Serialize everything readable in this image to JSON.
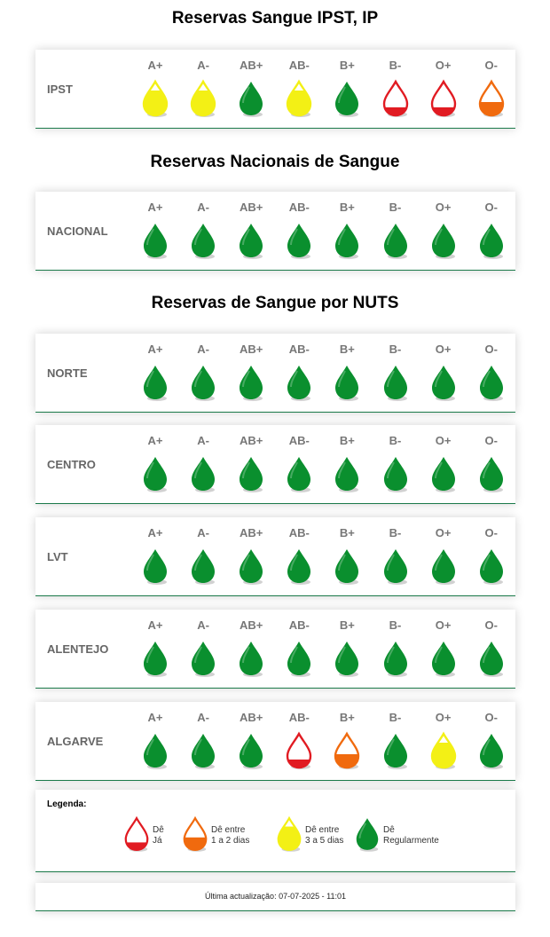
{
  "colors": {
    "green": "#0a8f2e",
    "yellow": "#f3f015",
    "orange": "#f06a0e",
    "red": "#e11b22"
  },
  "blood_types": [
    "A+",
    "A-",
    "AB+",
    "AB-",
    "B+",
    "B-",
    "O+",
    "O-"
  ],
  "sections": {
    "ipst_title": "Reservas Sangue IPST, IP",
    "national_title": "Reservas Nacionais de Sangue",
    "nuts_title": "Reservas de Sangue por NUTS"
  },
  "regions": [
    {
      "name": "IPST",
      "levels": [
        "yellow",
        "yellow",
        "green",
        "yellow",
        "green",
        "red",
        "red",
        "orange"
      ]
    },
    {
      "name": "NACIONAL",
      "levels": [
        "green",
        "green",
        "green",
        "green",
        "green",
        "green",
        "green",
        "green"
      ]
    },
    {
      "name": "NORTE",
      "levels": [
        "green",
        "green",
        "green",
        "green",
        "green",
        "green",
        "green",
        "green"
      ]
    },
    {
      "name": "CENTRO",
      "levels": [
        "green",
        "green",
        "green",
        "green",
        "green",
        "green",
        "green",
        "green"
      ]
    },
    {
      "name": "LVT",
      "levels": [
        "green",
        "green",
        "green",
        "green",
        "green",
        "green",
        "green",
        "green"
      ]
    },
    {
      "name": "ALENTEJO",
      "levels": [
        "green",
        "green",
        "green",
        "green",
        "green",
        "green",
        "green",
        "green"
      ]
    },
    {
      "name": "ALGARVE",
      "levels": [
        "green",
        "green",
        "green",
        "red",
        "orange",
        "green",
        "yellow",
        "green"
      ]
    }
  ],
  "legend": {
    "title": "Legenda:",
    "items": [
      {
        "level": "red",
        "line1": "Dê",
        "line2": "Já"
      },
      {
        "level": "orange",
        "line1": "Dê entre",
        "line2": "1 a 2 dias"
      },
      {
        "level": "yellow",
        "line1": "Dê entre",
        "line2": "3 a 5 dias"
      },
      {
        "level": "green",
        "line1": "Dê",
        "line2": "Regularmente"
      }
    ]
  },
  "last_update": "Última actualização: 07-07-2025 - 11:01"
}
